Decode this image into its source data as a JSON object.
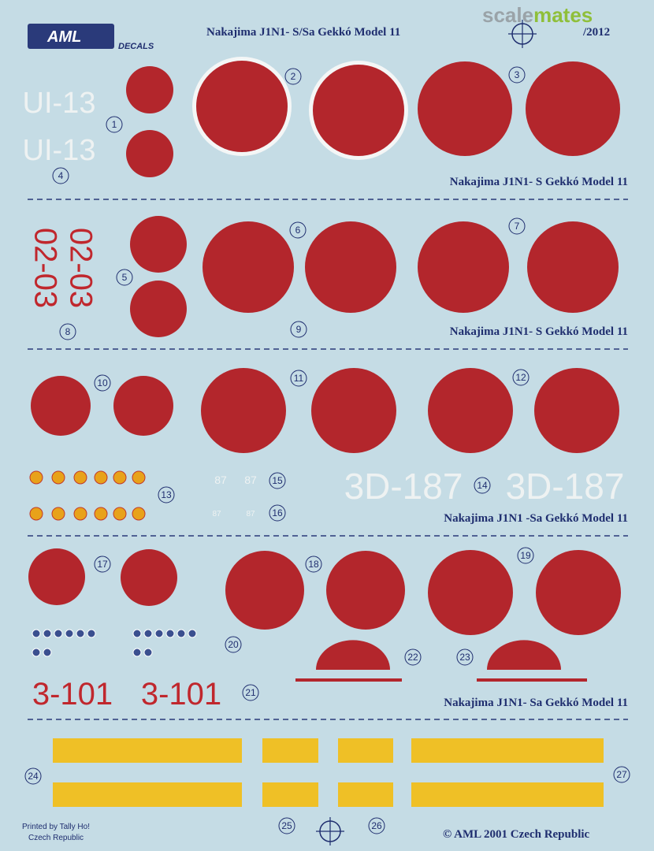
{
  "header": {
    "logo": "AML",
    "decals": "DECALS",
    "title": "Nakajima J1N1- S/Sa  Gekkó Model 11",
    "code": "/2012",
    "watermark_a": "scale",
    "watermark_b": "mates"
  },
  "sections": [
    {
      "title": "Nakajima J1N1- S Gekkó Model 11"
    },
    {
      "title": "Nakajima J1N1- S Gekkó Model 11"
    },
    {
      "title": "Nakajima J1N1 -Sa  Gekkó Model 11"
    },
    {
      "title": "Nakajima J1N1- Sa  Gekkó Model 11"
    }
  ],
  "numbers": [
    "1",
    "2",
    "3",
    "4",
    "5",
    "6",
    "7",
    "8",
    "9",
    "10",
    "11",
    "12",
    "13",
    "14",
    "15",
    "16",
    "17",
    "18",
    "19",
    "20",
    "21",
    "22",
    "23",
    "24",
    "25",
    "26",
    "27"
  ],
  "markings": {
    "ui": "UI-13",
    "code_0203": "02-03",
    "small_87": "87",
    "code_3d187": "3D-187",
    "code_3101": "3-101"
  },
  "footer": {
    "printer": "Printed by Tally Ho!",
    "printer_country": "Czech Republic",
    "copyright": "© AML 2001  Czech Republic"
  }
}
